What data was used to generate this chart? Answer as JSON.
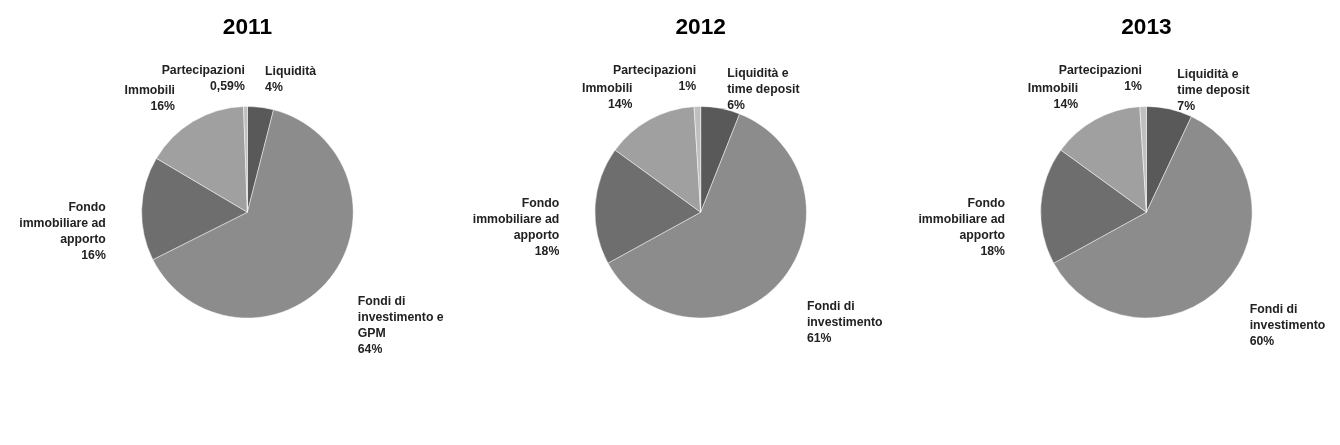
{
  "chart_data": [
    {
      "type": "pie",
      "title": "2011",
      "categories": [
        "Liquidità",
        "Fondi di investimento e GPM",
        "Fondo immobiliare ad apporto",
        "Immobili",
        "Partecipazioni"
      ],
      "values": [
        4,
        64,
        16,
        16,
        0.59
      ],
      "value_labels": [
        "4%",
        "64%",
        "16%",
        "16%",
        "0,59%"
      ],
      "colors": [
        "#595959",
        "#8c8c8c",
        "#6e6e6e",
        "#a0a0a0",
        "#bfbfbf"
      ],
      "legend": false
    },
    {
      "type": "pie",
      "title": "2012",
      "categories": [
        "Liquidità e time deposit",
        "Fondi di investimento",
        "Fondo immobiliare ad apporto",
        "Immobili",
        "Partecipazioni"
      ],
      "values": [
        6,
        61,
        18,
        14,
        1
      ],
      "value_labels": [
        "6%",
        "61%",
        "18%",
        "14%",
        "1%"
      ],
      "colors": [
        "#595959",
        "#8c8c8c",
        "#6e6e6e",
        "#a0a0a0",
        "#bfbfbf"
      ],
      "legend": false
    },
    {
      "type": "pie",
      "title": "2013",
      "categories": [
        "Liquidità e time deposit",
        "Fondi di investimento",
        "Fondo immobiliare ad apporto",
        "Immobili",
        "Partecipazioni"
      ],
      "values": [
        7,
        60,
        18,
        14,
        1
      ],
      "value_labels": [
        "7%",
        "60%",
        "18%",
        "14%",
        "1%"
      ],
      "colors": [
        "#595959",
        "#8c8c8c",
        "#6e6e6e",
        "#a0a0a0",
        "#bfbfbf"
      ],
      "legend": false
    }
  ]
}
